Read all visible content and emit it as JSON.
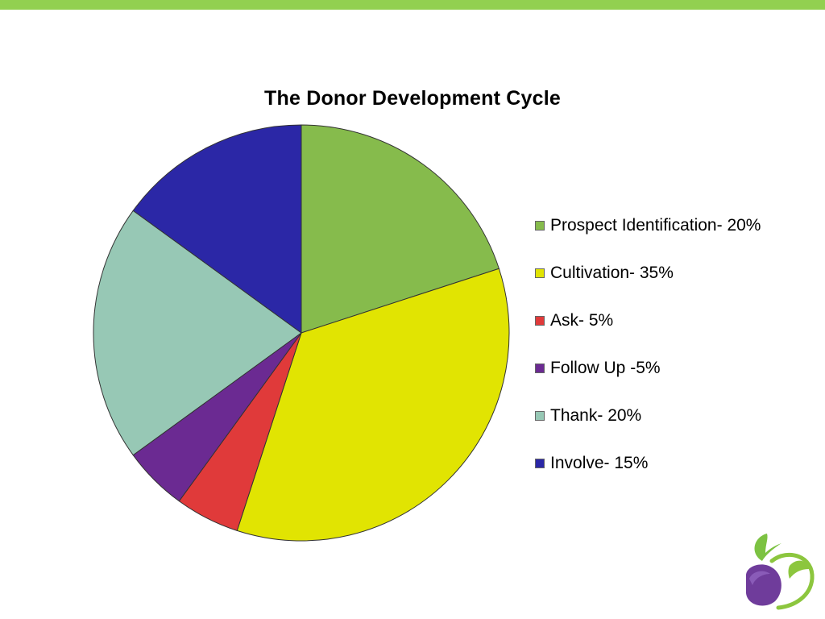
{
  "theme": {
    "top_bar_color": "#92d050"
  },
  "chart_data": {
    "type": "pie",
    "title": "The Donor Development Cycle",
    "legend_position": "right",
    "slices": [
      {
        "label": "Prospect Identification- 20%",
        "value": 20,
        "color": "#86bb4c"
      },
      {
        "label": "Cultivation- 35%",
        "value": 35,
        "color": "#e1e402"
      },
      {
        "label": "Ask- 5%",
        "value": 5,
        "color": "#e03a3a"
      },
      {
        "label": "Follow Up -5%",
        "value": 5,
        "color": "#6b2a92"
      },
      {
        "label": "Thank- 20%",
        "value": 20,
        "color": "#97c8b5"
      },
      {
        "label": "Involve- 15%",
        "value": 15,
        "color": "#2b27a6"
      }
    ]
  },
  "logo": {
    "icon": "sprout-logo-icon"
  }
}
